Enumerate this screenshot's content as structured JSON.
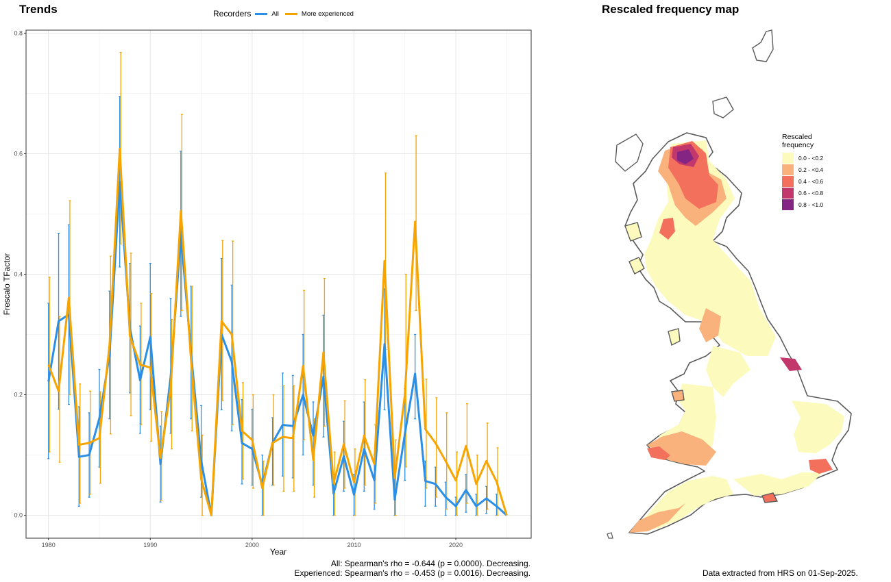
{
  "panels": {
    "trends_title": "Trends",
    "map_title": "Rescaled frequency map"
  },
  "legend": {
    "title": "Recorders",
    "items": [
      {
        "label": "All",
        "color": "#2b8fe6"
      },
      {
        "label": "More experienced",
        "color": "#f7a400"
      }
    ]
  },
  "stats": {
    "all": "All: Spearman's rho = -0.644 (p = 0.0000). Decreasing.",
    "experienced": "Experienced: Spearman's rho = -0.453 (p = 0.0016). Decreasing."
  },
  "map": {
    "legend_title": "Rescaled frequency",
    "legend_items": [
      {
        "label": "0.0 - <0.2",
        "color": "#fdfabd"
      },
      {
        "label": "0.2 - <0.4",
        "color": "#f9b27c"
      },
      {
        "label": "0.4 - <0.6",
        "color": "#f2705c"
      },
      {
        "label": "0.6 - <0.8",
        "color": "#c2376c"
      },
      {
        "label": "0.8 - <1.0",
        "color": "#842584"
      }
    ],
    "extract_note": "Data extracted from HRS on 01-Sep-2025."
  },
  "chart_data": {
    "type": "line",
    "title": "Trends",
    "xlabel": "Year",
    "ylabel": "Frescalo TFactor",
    "xlim": [
      1977.8,
      2027.4
    ],
    "ylim": [
      -0.038,
      0.805
    ],
    "xticks": [
      1980,
      1990,
      2000,
      2010,
      2020
    ],
    "yticks": [
      0.0,
      0.2,
      0.4,
      0.6,
      0.8
    ],
    "ytick_labels": [
      "0.0",
      "0.2",
      "0.4",
      "0.6",
      "0.8"
    ],
    "grid": true,
    "legend_position": "top",
    "series": [
      {
        "name": "All",
        "color": "#2b8fe6",
        "x": [
          1980,
          1981,
          1982,
          1983,
          1984,
          1985,
          1986,
          1987,
          1988,
          1989,
          1990,
          1991,
          1992,
          1993,
          1994,
          1995,
          1996,
          1997,
          1998,
          1999,
          2000,
          2001,
          2002,
          2003,
          2004,
          2005,
          2006,
          2007,
          2008,
          2009,
          2010,
          2011,
          2012,
          2013,
          2014,
          2015,
          2016,
          2017,
          2018,
          2019,
          2020,
          2021,
          2022,
          2023,
          2024,
          2025
        ],
        "y": [
          0.222,
          0.322,
          0.333,
          0.097,
          0.1,
          0.161,
          0.266,
          0.553,
          0.31,
          0.224,
          0.296,
          0.085,
          0.23,
          0.466,
          0.27,
          0.09,
          0.0,
          0.3,
          0.255,
          0.12,
          0.11,
          0.05,
          0.12,
          0.15,
          0.148,
          0.2,
          0.132,
          0.23,
          0.036,
          0.098,
          0.034,
          0.11,
          0.058,
          0.284,
          0.026,
          0.135,
          0.235,
          0.057,
          0.052,
          0.03,
          0.015,
          0.042,
          0.015,
          0.028,
          0.015,
          0.0
        ],
        "lower": [
          0.094,
          0.176,
          0.184,
          0.015,
          0.03,
          0.08,
          0.16,
          0.412,
          0.203,
          0.136,
          0.175,
          0.022,
          0.136,
          0.33,
          0.16,
          0.03,
          0.0,
          0.175,
          0.14,
          0.052,
          0.05,
          0.0,
          0.05,
          0.065,
          0.062,
          0.1,
          0.05,
          0.13,
          0.0,
          0.04,
          0.0,
          0.04,
          0.01,
          0.175,
          0.0,
          0.058,
          0.16,
          0.015,
          0.015,
          0.0,
          0.0,
          0.005,
          0.0,
          0.003,
          0.0,
          0.0
        ],
        "upper": [
          0.352,
          0.468,
          0.482,
          0.18,
          0.17,
          0.242,
          0.372,
          0.695,
          0.418,
          0.314,
          0.418,
          0.148,
          0.36,
          0.604,
          0.38,
          0.182,
          0.0,
          0.426,
          0.382,
          0.192,
          0.176,
          0.1,
          0.162,
          0.236,
          0.232,
          0.3,
          0.188,
          0.332,
          0.068,
          0.156,
          0.068,
          0.188,
          0.1,
          0.376,
          0.07,
          0.21,
          0.3,
          0.09,
          0.08,
          0.055,
          0.03,
          0.068,
          0.035,
          0.048,
          0.035,
          0.0
        ]
      },
      {
        "name": "More experienced",
        "color": "#f7a400",
        "x": [
          1980,
          1981,
          1982,
          1983,
          1984,
          1985,
          1986,
          1987,
          1988,
          1989,
          1990,
          1991,
          1992,
          1993,
          1994,
          1995,
          1996,
          1997,
          1998,
          1999,
          2000,
          2001,
          2002,
          2003,
          2004,
          2005,
          2006,
          2007,
          2008,
          2009,
          2010,
          2011,
          2012,
          2013,
          2014,
          2015,
          2016,
          2017,
          2018,
          2019,
          2020,
          2021,
          2022,
          2023,
          2024,
          2025
        ],
        "y": [
          0.25,
          0.206,
          0.361,
          0.117,
          0.12,
          0.128,
          0.282,
          0.608,
          0.297,
          0.25,
          0.245,
          0.095,
          0.21,
          0.505,
          0.258,
          0.06,
          0.0,
          0.322,
          0.3,
          0.14,
          0.125,
          0.045,
          0.12,
          0.13,
          0.128,
          0.248,
          0.092,
          0.27,
          0.053,
          0.118,
          0.055,
          0.132,
          0.085,
          0.422,
          0.062,
          0.2,
          0.487,
          0.143,
          0.12,
          0.09,
          0.058,
          0.115,
          0.052,
          0.09,
          0.056,
          0.0
        ],
        "lower": [
          0.105,
          0.088,
          0.2,
          0.02,
          0.035,
          0.053,
          0.135,
          0.45,
          0.165,
          0.15,
          0.123,
          0.025,
          0.11,
          0.34,
          0.14,
          0.0,
          0.0,
          0.19,
          0.15,
          0.06,
          0.045,
          0.0,
          0.05,
          0.04,
          0.04,
          0.125,
          0.03,
          0.148,
          0.0,
          0.045,
          0.0,
          0.05,
          0.02,
          0.275,
          0.0,
          0.08,
          0.34,
          0.045,
          0.03,
          0.01,
          0.0,
          0.02,
          0.0,
          0.01,
          0.0,
          0.0
        ],
        "upper": [
          0.395,
          0.33,
          0.522,
          0.218,
          0.206,
          0.205,
          0.43,
          0.768,
          0.435,
          0.352,
          0.368,
          0.172,
          0.325,
          0.665,
          0.38,
          0.133,
          0.0,
          0.456,
          0.455,
          0.22,
          0.2,
          0.09,
          0.2,
          0.215,
          0.215,
          0.373,
          0.16,
          0.393,
          0.105,
          0.19,
          0.11,
          0.225,
          0.15,
          0.568,
          0.125,
          0.4,
          0.63,
          0.226,
          0.195,
          0.17,
          0.105,
          0.185,
          0.1,
          0.153,
          0.112,
          0.0
        ]
      }
    ]
  }
}
